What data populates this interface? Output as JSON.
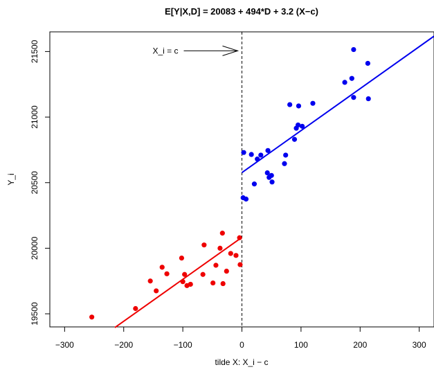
{
  "chart_data": {
    "type": "scatter",
    "title": "E[Y|X,D] = 20083 + 494*D + 3.2 (X−c)",
    "xlabel": "tilde X: X_i − c",
    "ylabel": "Y_i",
    "xlim": [
      -325,
      325
    ],
    "ylim": [
      19400,
      21650
    ],
    "xticks": [
      -300,
      -200,
      -100,
      0,
      100,
      200,
      300
    ],
    "xtick_labels": [
      "−300",
      "−200",
      "−100",
      "0",
      "100",
      "200",
      "300"
    ],
    "yticks": [
      19500,
      20000,
      20500,
      21000,
      21500
    ],
    "ytick_labels": [
      "19500",
      "20000",
      "20500",
      "21000",
      "21500"
    ],
    "grid": false,
    "cutoff": 0,
    "annotation": {
      "text": "X_i = c",
      "arrow_to": [
        0,
        21500
      ]
    },
    "series": [
      {
        "color": "#ee0000",
        "points": [
          [
            -254,
            19475
          ],
          [
            -180,
            19540
          ],
          [
            -155,
            19750
          ],
          [
            -145,
            19675
          ],
          [
            -135,
            19855
          ],
          [
            -127,
            19805
          ],
          [
            -102,
            19925
          ],
          [
            -100,
            19745
          ],
          [
            -97,
            19800
          ],
          [
            -93,
            19715
          ],
          [
            -87,
            19725
          ],
          [
            -66,
            19800
          ],
          [
            -64,
            20025
          ],
          [
            -49,
            19735
          ],
          [
            -44,
            19870
          ],
          [
            -37,
            20000
          ],
          [
            -33,
            20115
          ],
          [
            -32,
            19730
          ],
          [
            -26,
            19825
          ],
          [
            -19,
            19960
          ],
          [
            -10,
            19945
          ],
          [
            -4,
            20080
          ],
          [
            -3,
            19875
          ]
        ],
        "fit": {
          "x": [
            -215,
            0
          ],
          "y": [
            19395,
            20083
          ]
        }
      },
      {
        "color": "#0000ee",
        "points": [
          [
            2,
            20385
          ],
          [
            3,
            20730
          ],
          [
            7,
            20375
          ],
          [
            16,
            20715
          ],
          [
            21,
            20490
          ],
          [
            26,
            20680
          ],
          [
            32,
            20710
          ],
          [
            43,
            20575
          ],
          [
            44,
            20745
          ],
          [
            46,
            20540
          ],
          [
            50,
            20555
          ],
          [
            51,
            20505
          ],
          [
            72,
            20645
          ],
          [
            74,
            20710
          ],
          [
            81,
            21095
          ],
          [
            89,
            20830
          ],
          [
            92,
            20915
          ],
          [
            95,
            20940
          ],
          [
            96,
            21085
          ],
          [
            102,
            20930
          ],
          [
            120,
            21105
          ],
          [
            174,
            21265
          ],
          [
            186,
            21295
          ],
          [
            189,
            21150
          ],
          [
            189,
            21515
          ],
          [
            213,
            21410
          ],
          [
            214,
            21140
          ]
        ],
        "fit": {
          "x": [
            0,
            325
          ],
          "y": [
            20577,
            21617
          ]
        }
      }
    ]
  }
}
